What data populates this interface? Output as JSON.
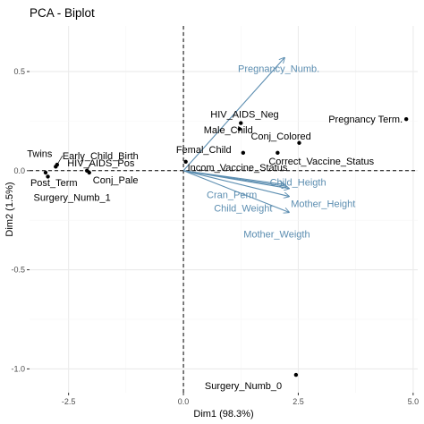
{
  "chart_data": {
    "type": "scatter",
    "title": "PCA - Biplot",
    "xlabel": "Dim1 (98.3%)",
    "ylabel": "Dim2 (1.5%)",
    "xlim": [
      -3.35,
      5.1
    ],
    "ylim": [
      -1.12,
      0.73
    ],
    "xticks": [
      -2.5,
      0.0,
      2.5,
      5.0
    ],
    "xtick_labels": [
      "-2.5",
      "0.0",
      "2.5",
      "5.0"
    ],
    "yticks": [
      -1.0,
      -0.5,
      0.0,
      0.5
    ],
    "ytick_labels": [
      "-1.0",
      "-0.5",
      "0.0",
      "0.5"
    ],
    "grid": true,
    "reference_lines": {
      "x": 0,
      "y": 0
    },
    "colors": {
      "points": "#000000",
      "variables": "#5b8db0",
      "grid_major": "#ebebeb",
      "grid_minor": "#f5f5f5",
      "reference": "#000000"
    },
    "individuals": [
      {
        "label": "Pregnancy Term.",
        "x": 4.85,
        "y": 0.26
      },
      {
        "label": "HIV_AIDS_Neg",
        "x": 1.25,
        "y": 0.24
      },
      {
        "label": "Male_Child",
        "x": 1.22,
        "y": 0.21
      },
      {
        "label": "Conj_Colored",
        "x": 2.52,
        "y": 0.14
      },
      {
        "label": "Femal_Child",
        "x": 1.3,
        "y": 0.09
      },
      {
        "label": "Correct_Vaccine_Status",
        "x": 2.05,
        "y": 0.09
      },
      {
        "label": "Incom_Vaccine_Status",
        "x": 0.05,
        "y": 0.045
      },
      {
        "label": "Early_Child_Birth",
        "x": -2.75,
        "y": 0.03
      },
      {
        "label": "Twins",
        "x": -2.78,
        "y": 0.02
      },
      {
        "label": "HIV_AIDS_Pos",
        "x": -2.1,
        "y": 0.0
      },
      {
        "label": "Conj_Pale",
        "x": -2.05,
        "y": -0.01
      },
      {
        "label": "Post_Term",
        "x": -3.0,
        "y": -0.01
      },
      {
        "label": "Surgery_Numb_1",
        "x": -2.95,
        "y": -0.03
      },
      {
        "label": "Surgery_Numb_0",
        "x": 2.45,
        "y": -1.03
      }
    ],
    "variables": [
      {
        "label": "Pregnancy_Numb.",
        "x": 2.2,
        "y": 0.57
      },
      {
        "label": "Child_Heigth",
        "x": 2.25,
        "y": -0.08
      },
      {
        "label": "Mother_Height",
        "x": 2.3,
        "y": -0.09
      },
      {
        "label": "Cran_Perm",
        "x": 2.2,
        "y": -0.07
      },
      {
        "label": "Child_Weight",
        "x": 2.3,
        "y": -0.13
      },
      {
        "label": "Mother_Weigth",
        "x": 2.3,
        "y": -0.21
      }
    ]
  }
}
